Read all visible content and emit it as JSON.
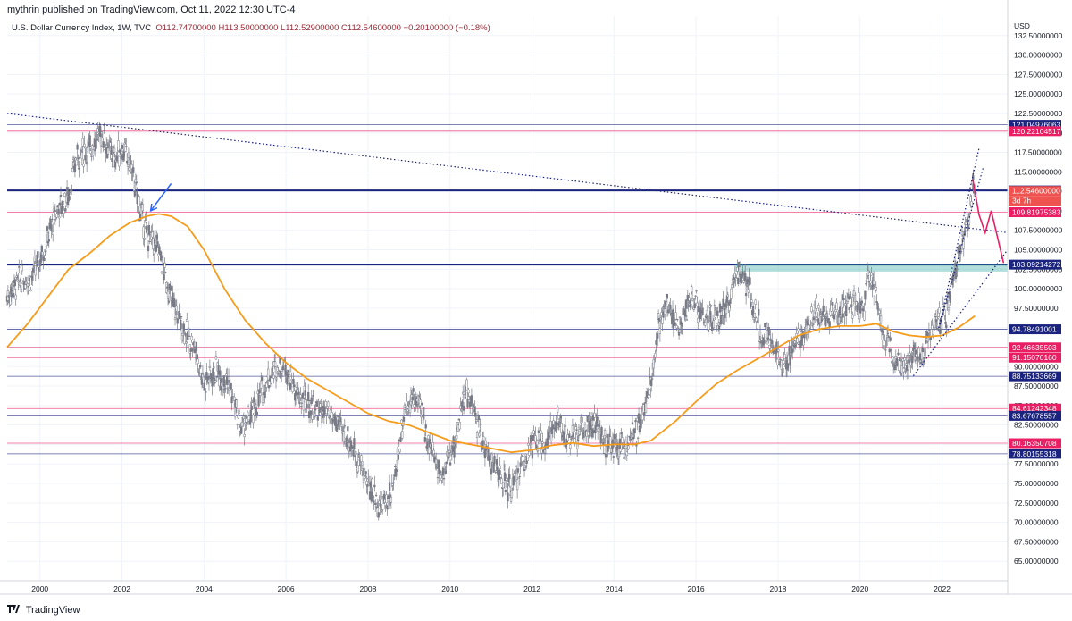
{
  "header": {
    "publisher": "mythrin published on TradingView.com, Oct 11, 2022 12:30 UTC-4"
  },
  "symbol": {
    "name": "U.S. Dollar Currency Index, 1W, TVC",
    "ohlc": "O112.74700000 H113.50000000 L112.52900000 C112.54600000 −0.20100000 (−0.18%)"
  },
  "footer": {
    "brand": "TradingView"
  },
  "chart_data": {
    "type": "candlestick",
    "title": "U.S. Dollar Currency Index, 1W, TVC",
    "currency": "USD",
    "ylim": [
      62.5,
      135
    ],
    "xlim": [
      1999.2,
      2023.6
    ],
    "y_ticks": [
      "65.00000000",
      "67.50000000",
      "70.00000000",
      "72.50000000",
      "75.00000000",
      "77.50000000",
      "80.00000000",
      "82.50000000",
      "85.00000000",
      "87.50000000",
      "90.00000000",
      "92.50000000",
      "95.00000000",
      "97.50000000",
      "100.00000000",
      "102.50000000",
      "105.00000000",
      "107.50000000",
      "110.00000000",
      "112.50000000",
      "115.00000000",
      "117.50000000",
      "120.00000000",
      "122.50000000",
      "125.00000000",
      "127.50000000",
      "130.00000000",
      "132.50000000"
    ],
    "x_ticks": [
      "2000",
      "2002",
      "2004",
      "2006",
      "2008",
      "2010",
      "2012",
      "2014",
      "2016",
      "2018",
      "2020",
      "2022"
    ],
    "price_series": [
      [
        1999.2,
        99
      ],
      [
        1999.5,
        101
      ],
      [
        1999.8,
        101.5
      ],
      [
        2000.1,
        105
      ],
      [
        2000.4,
        110
      ],
      [
        2000.7,
        112
      ],
      [
        2000.9,
        117
      ],
      [
        2001.2,
        118
      ],
      [
        2001.5,
        120
      ],
      [
        2001.8,
        116.5
      ],
      [
        2002.0,
        118
      ],
      [
        2002.2,
        116
      ],
      [
        2002.4,
        111
      ],
      [
        2002.6,
        107
      ],
      [
        2002.9,
        105
      ],
      [
        2003.2,
        98.5
      ],
      [
        2003.5,
        95
      ],
      [
        2003.8,
        92
      ],
      [
        2004.0,
        88
      ],
      [
        2004.3,
        89.5
      ],
      [
        2004.6,
        88
      ],
      [
        2004.9,
        82
      ],
      [
        2005.2,
        84
      ],
      [
        2005.5,
        88
      ],
      [
        2005.8,
        90
      ],
      [
        2006.0,
        90
      ],
      [
        2006.3,
        86
      ],
      [
        2006.6,
        85
      ],
      [
        2006.9,
        84
      ],
      [
        2007.2,
        83
      ],
      [
        2007.5,
        81
      ],
      [
        2007.8,
        77.5
      ],
      [
        2008.0,
        75
      ],
      [
        2008.3,
        72
      ],
      [
        2008.6,
        74
      ],
      [
        2008.9,
        85
      ],
      [
        2009.2,
        86
      ],
      [
        2009.5,
        80
      ],
      [
        2009.8,
        76
      ],
      [
        2010.1,
        80
      ],
      [
        2010.4,
        87
      ],
      [
        2010.7,
        82
      ],
      [
        2010.9,
        79
      ],
      [
        2011.2,
        76
      ],
      [
        2011.5,
        74
      ],
      [
        2011.8,
        78
      ],
      [
        2012.0,
        80
      ],
      [
        2012.3,
        80
      ],
      [
        2012.6,
        83
      ],
      [
        2012.9,
        80
      ],
      [
        2013.2,
        82
      ],
      [
        2013.5,
        83
      ],
      [
        2013.8,
        80
      ],
      [
        2014.0,
        80
      ],
      [
        2014.3,
        80
      ],
      [
        2014.6,
        82
      ],
      [
        2014.9,
        88
      ],
      [
        2015.1,
        96
      ],
      [
        2015.3,
        98
      ],
      [
        2015.6,
        95
      ],
      [
        2015.9,
        99
      ],
      [
        2016.2,
        96
      ],
      [
        2016.5,
        96
      ],
      [
        2016.8,
        98
      ],
      [
        2017.0,
        102.5
      ],
      [
        2017.3,
        100
      ],
      [
        2017.6,
        94
      ],
      [
        2017.9,
        93
      ],
      [
        2018.1,
        89
      ],
      [
        2018.4,
        93.5
      ],
      [
        2018.7,
        95
      ],
      [
        2018.9,
        97
      ],
      [
        2019.2,
        96.5
      ],
      [
        2019.5,
        97
      ],
      [
        2019.8,
        98
      ],
      [
        2020.1,
        97.5
      ],
      [
        2020.2,
        102.8
      ],
      [
        2020.4,
        99
      ],
      [
        2020.6,
        93
      ],
      [
        2020.9,
        91
      ],
      [
        2021.1,
        90
      ],
      [
        2021.3,
        91.5
      ],
      [
        2021.5,
        92
      ],
      [
        2021.7,
        93.5
      ],
      [
        2021.9,
        96
      ],
      [
        2022.1,
        96.5
      ],
      [
        2022.3,
        102
      ],
      [
        2022.5,
        106
      ],
      [
        2022.65,
        109
      ],
      [
        2022.75,
        114
      ],
      [
        2022.78,
        112.5
      ]
    ],
    "moving_average": [
      [
        1999.2,
        92.5
      ],
      [
        1999.7,
        95.5
      ],
      [
        2000.2,
        99
      ],
      [
        2000.7,
        102.5
      ],
      [
        2001.2,
        104.5
      ],
      [
        2001.7,
        106.8
      ],
      [
        2002.2,
        108.5
      ],
      [
        2002.6,
        109.3
      ],
      [
        2002.9,
        109.6
      ],
      [
        2003.2,
        109.3
      ],
      [
        2003.6,
        108
      ],
      [
        2004.0,
        105
      ],
      [
        2004.5,
        100
      ],
      [
        2005.0,
        96
      ],
      [
        2005.5,
        93
      ],
      [
        2006.0,
        90.5
      ],
      [
        2006.5,
        88.5
      ],
      [
        2007.0,
        87
      ],
      [
        2007.5,
        85.5
      ],
      [
        2008.0,
        84
      ],
      [
        2008.5,
        83
      ],
      [
        2009.0,
        82.5
      ],
      [
        2009.5,
        81.5
      ],
      [
        2010.0,
        80.5
      ],
      [
        2010.5,
        80
      ],
      [
        2011.0,
        79.5
      ],
      [
        2011.5,
        79
      ],
      [
        2012.0,
        79.3
      ],
      [
        2012.5,
        79.9
      ],
      [
        2013.0,
        80.2
      ],
      [
        2013.5,
        79.8
      ],
      [
        2014.0,
        80
      ],
      [
        2014.5,
        80
      ],
      [
        2014.9,
        80.5
      ],
      [
        2015.5,
        83
      ],
      [
        2016.0,
        85.5
      ],
      [
        2016.5,
        87.8
      ],
      [
        2017.0,
        89.5
      ],
      [
        2017.5,
        91
      ],
      [
        2018.0,
        92.5
      ],
      [
        2018.5,
        94
      ],
      [
        2019.0,
        94.8
      ],
      [
        2019.5,
        95.2
      ],
      [
        2020.0,
        95.2
      ],
      [
        2020.4,
        95.5
      ],
      [
        2020.8,
        94.5
      ],
      [
        2021.2,
        94
      ],
      [
        2021.6,
        93.8
      ],
      [
        2022.0,
        94
      ],
      [
        2022.4,
        95
      ],
      [
        2022.8,
        96.5
      ]
    ],
    "horizontal_levels": [
      {
        "value": "121.04976063",
        "color": "#1a237e",
        "kind": "thin"
      },
      {
        "value": "120.22104517",
        "color": "#e91e63",
        "kind": "thin"
      },
      {
        "value": "112.61404126",
        "color": "#1a237e",
        "kind": "thick"
      },
      {
        "value": "109.81975383",
        "color": "#e91e63",
        "kind": "thin"
      },
      {
        "value": "103.09214272",
        "color": "#1a237e",
        "kind": "thick"
      },
      {
        "value": "94.78491001",
        "color": "#1a237e",
        "kind": "thin"
      },
      {
        "value": "92.46635503",
        "color": "#e91e63",
        "kind": "thin"
      },
      {
        "value": "91.15070160",
        "color": "#e91e63",
        "kind": "thin"
      },
      {
        "value": "88.75133669",
        "color": "#1a237e",
        "kind": "thin"
      },
      {
        "value": "84.61242348",
        "color": "#e91e63",
        "kind": "thin"
      },
      {
        "value": "83.67678557",
        "color": "#1a237e",
        "kind": "thin"
      },
      {
        "value": "80.16350708",
        "color": "#e91e63",
        "kind": "thin"
      },
      {
        "value": "78.80155318",
        "color": "#1a237e",
        "kind": "thin"
      }
    ],
    "current_price": {
      "value": "112.54600000",
      "countdown": "3d 7h",
      "color": "#ef5350"
    },
    "trendlines": [
      {
        "from": [
          1999.2,
          122.5
        ],
        "to": [
          2023.6,
          107.2
        ],
        "color": "#1a237e"
      },
      {
        "from": [
          2021.3,
          88.8
        ],
        "to": [
          2023.6,
          105
        ],
        "color": "#1a237e"
      },
      {
        "from": [
          2021.9,
          94.5
        ],
        "to": [
          2023.0,
          115.5
        ],
        "color": "#1a237e"
      },
      {
        "from": [
          2021.9,
          94.5
        ],
        "to": [
          2022.9,
          118
        ],
        "color": "#1a237e"
      }
    ],
    "projection_path": [
      [
        2022.75,
        114
      ],
      [
        2022.9,
        109.5
      ],
      [
        2023.05,
        107.2
      ],
      [
        2023.2,
        110
      ],
      [
        2023.5,
        103.3
      ]
    ],
    "projection_color": "#e91e63",
    "arrow": {
      "from": [
        2003.2,
        113.5
      ],
      "to": [
        2002.7,
        110
      ],
      "color": "#2962ff"
    },
    "support_zone": {
      "from": [
        2016.95,
        103.2
      ],
      "to": [
        2023.6,
        102.2
      ],
      "color": "#26a69a"
    },
    "ma_color": "#f59c1a",
    "candle_color": "#787b86"
  }
}
